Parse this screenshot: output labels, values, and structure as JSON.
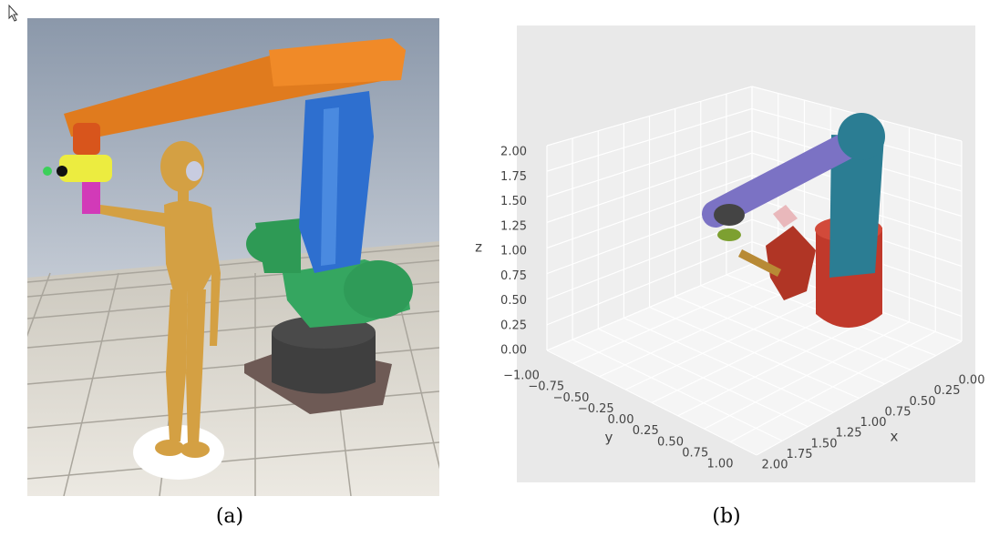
{
  "panels": [
    {
      "caption": "(a)"
    },
    {
      "caption": "(b)",
      "axes": {
        "x": {
          "label": "x",
          "ticks": [
            "0.00",
            "0.25",
            "0.50",
            "0.75",
            "1.00",
            "1.25",
            "1.50",
            "1.75",
            "2.00"
          ]
        },
        "y": {
          "label": "y",
          "ticks": [
            "−1.00",
            "−0.75",
            "−0.50",
            "−0.25",
            "0.00",
            "0.25",
            "0.50",
            "0.75",
            "1.00"
          ]
        },
        "z": {
          "label": "z",
          "ticks": [
            "0.00",
            "0.25",
            "0.50",
            "0.75",
            "1.00",
            "1.25",
            "1.50",
            "1.75",
            "2.00"
          ]
        }
      }
    }
  ]
}
